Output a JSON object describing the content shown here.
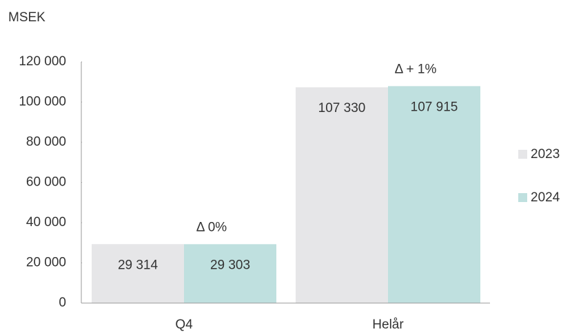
{
  "chart_data": {
    "type": "bar",
    "y_label": "MSEK",
    "categories": [
      "Q4",
      "Helår"
    ],
    "series": [
      {
        "name": "2023",
        "color": "#e6e6e8",
        "values": [
          29314,
          107330
        ],
        "value_labels": [
          "29 314",
          "107 330"
        ]
      },
      {
        "name": "2024",
        "color": "#bfe0df",
        "values": [
          29303,
          107915
        ],
        "value_labels": [
          "29 303",
          "107 915"
        ]
      }
    ],
    "annotations": [
      "Δ 0%",
      "Δ + 1%"
    ],
    "ylim": [
      0,
      120000
    ],
    "yticks": [
      0,
      {
        "value": 20000,
        "label": "20 000"
      },
      {
        "value": 40000,
        "label": "40 000"
      },
      {
        "value": 60000,
        "label": "60 000"
      },
      {
        "value": 80000,
        "label": "80 000"
      },
      {
        "value": 100000,
        "label": "100 000"
      },
      {
        "value": 120000,
        "label": "120 000"
      }
    ],
    "legend": "right",
    "grid": false
  }
}
